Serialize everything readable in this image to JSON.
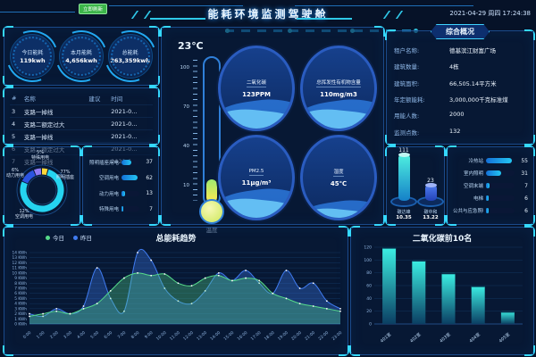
{
  "theme": {
    "bg": "#061228",
    "panel_border": "#1a4a8a",
    "accent_cyan": "#35dcff",
    "accent_green": "#3cb54a",
    "blue_line": "#3f7bf0",
    "green_line": "#56d98a"
  },
  "header": {
    "title": "能耗环境监测驾驶舱",
    "datetime": "2021-04-29 周四 17:24:38",
    "refresh_badge": "立即刷新"
  },
  "stats": {
    "items": [
      {
        "label": "今日能耗",
        "value": "119kwh"
      },
      {
        "label": "本月能耗",
        "value": "4,656kwh"
      },
      {
        "label": "总能耗",
        "value": "263,359kwh"
      }
    ]
  },
  "alarm_table": {
    "headers": [
      "#",
      "名称",
      "建议",
      "时间"
    ],
    "rows": [
      [
        "3",
        "支路一掉线",
        "",
        "2021-0..."
      ],
      [
        "4",
        "支路二额定过大",
        "",
        "2021-0..."
      ],
      [
        "5",
        "支路一掉线",
        "",
        "2021-0..."
      ],
      [
        "6",
        "支路二额定过大",
        "",
        "2021-0..."
      ],
      [
        "7",
        "支路一掉线",
        "",
        "2021-0..."
      ]
    ]
  },
  "energy_pie": {
    "type": "pie",
    "slices": [
      {
        "label": "特殊用电",
        "pct": 5,
        "color": "#ffd83a"
      },
      {
        "label": "照明插座",
        "pct": 77,
        "color": "#25d4f0"
      },
      {
        "label": "空调用电",
        "pct": 12,
        "color": "#2b54e0"
      },
      {
        "label": "动力用电",
        "pct": 6,
        "color": "#8f7af5"
      }
    ]
  },
  "usage_rank": {
    "rows": [
      {
        "label": "照明插座用电",
        "value": 37
      },
      {
        "label": "空调用电",
        "value": 62
      },
      {
        "label": "动力用电",
        "value": 13
      },
      {
        "label": "特殊用电",
        "value": 7
      }
    ]
  },
  "thermometer": {
    "value": "23℃",
    "name": "温度",
    "ticks": [
      "100",
      "70",
      "40",
      "10"
    ],
    "fill_pct": 16
  },
  "env_gauges": [
    {
      "label": "二氧化碳",
      "value": "123PPM"
    },
    {
      "label": "总挥发性有机物含量",
      "value": "110mg/m3"
    },
    {
      "label": "PM2.5",
      "value": "11μg/m³"
    },
    {
      "label": "湿度",
      "value": "45℃"
    }
  ],
  "overview": {
    "title": "综合概况",
    "rows": [
      {
        "label": "租户名称:",
        "value": "德基滨江财富广场"
      },
      {
        "label": "建筑数量:",
        "value": "4栋"
      },
      {
        "label": "建筑面积:",
        "value": "66,505.14平方米"
      },
      {
        "label": "年定额能耗:",
        "value": "3,000,000千克标准煤"
      },
      {
        "label": "用能人数:",
        "value": "2000"
      },
      {
        "label": "监测点数:",
        "value": "132"
      }
    ]
  },
  "carbon_gauges": [
    {
      "top_value": "111",
      "label": "碳达峰",
      "value": "10.35",
      "height": 52
    },
    {
      "top_value": "23",
      "label": "碳中和",
      "value": "13.22",
      "height": 18
    }
  ],
  "subitem_rank": {
    "rows": [
      {
        "label": "冷热站",
        "value": 55
      },
      {
        "label": "室内照明",
        "value": 31
      },
      {
        "label": "空调末端",
        "value": 7
      },
      {
        "label": "电梯",
        "value": 6
      },
      {
        "label": "公共与应急照明",
        "value": 6
      }
    ]
  },
  "chart_data": [
    {
      "type": "area",
      "title": "总能耗趋势",
      "unit": "KWh",
      "ylim": [
        0,
        14
      ],
      "grid": true,
      "legend_position": "top-left",
      "x": [
        "0:00",
        "1:00",
        "2:00",
        "3:00",
        "4:00",
        "5:00",
        "6:00",
        "7:00",
        "8:00",
        "9:00",
        "10:00",
        "11:00",
        "12:00",
        "13:00",
        "14:00",
        "15:00",
        "16:00",
        "17:00",
        "18:00",
        "19:00",
        "20:00",
        "21:00",
        "22:00",
        "23:00"
      ],
      "series": [
        {
          "name": "昨日",
          "color": "#3f7bf0",
          "values": [
            2,
            1.5,
            3,
            2,
            3.5,
            11,
            5,
            2.5,
            14,
            12.5,
            7,
            4.5,
            4,
            6.5,
            10,
            8.5,
            10.5,
            8,
            6,
            10.5,
            7,
            8,
            4.5,
            3
          ]
        },
        {
          "name": "今日",
          "color": "#56d98a",
          "values": [
            1.5,
            2,
            2.5,
            2,
            3,
            4,
            6.5,
            9,
            10,
            9.5,
            9.8,
            8,
            7.5,
            9,
            9.5,
            8.5,
            9,
            8.5,
            6,
            5,
            4,
            3.5,
            3,
            2.5
          ]
        }
      ]
    },
    {
      "type": "bar",
      "title": "二氧化碳前10名",
      "ylim": [
        0,
        120
      ],
      "yticks": [
        0,
        20,
        40,
        60,
        80,
        100,
        120
      ],
      "categories": [
        "401室",
        "402室",
        "403室",
        "404室",
        "405室"
      ],
      "values": [
        120,
        100,
        80,
        60,
        20
      ]
    }
  ]
}
